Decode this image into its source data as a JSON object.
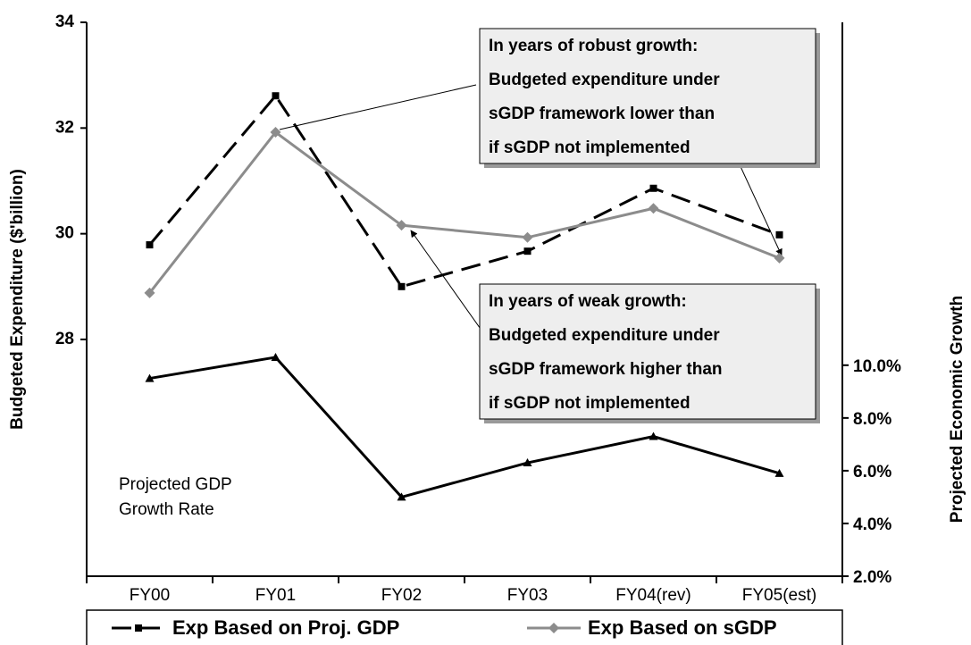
{
  "chart_data": {
    "type": "line",
    "y_label": "Budgeted Expenditure ($'billion)",
    "y2_label": "Projected Economic Growth",
    "categories": [
      "FY00",
      "FY01",
      "FY02",
      "FY03",
      "FY04(rev)",
      "FY05(est)"
    ],
    "ylim": [
      23.52,
      34
    ],
    "yticks": [
      28,
      30,
      32,
      34
    ],
    "y2lim": [
      2,
      23
    ],
    "y2ticks": [
      {
        "value": 2,
        "label": "2.0%"
      },
      {
        "value": 4,
        "label": "4.0%"
      },
      {
        "value": 6,
        "label": "6.0%"
      },
      {
        "value": 8,
        "label": "8.0%"
      },
      {
        "value": 10,
        "label": "10.0%"
      }
    ],
    "series": [
      {
        "name": "Exp Based on Proj. GDP",
        "color": "#000000",
        "dashed": true,
        "marker": "square",
        "values": [
          29.79,
          32.61,
          29.0,
          29.67,
          30.86,
          29.98
        ]
      },
      {
        "name": "Exp Based on sGDP",
        "color": "#8c8c8c",
        "dashed": false,
        "marker": "diamond",
        "values": [
          28.88,
          31.92,
          30.16,
          29.93,
          30.48,
          29.54
        ]
      },
      {
        "color": "#000000",
        "dashed": false,
        "marker": "triangle",
        "axis": "y2",
        "values": [
          9.5,
          10.3,
          5.0,
          6.3,
          7.3,
          5.9
        ]
      }
    ],
    "annotations": [
      {
        "lines": [
          "In years of robust growth:",
          "Budgeted expenditure under",
          "sGDP framework lower than",
          "if sGDP not implemented"
        ]
      },
      {
        "lines": [
          "In years of weak growth:",
          "Budgeted expenditure under",
          "sGDP framework higher than",
          "if sGDP not implemented"
        ]
      },
      {
        "lines": [
          "Projected GDP",
          "Growth Rate"
        ]
      }
    ]
  }
}
